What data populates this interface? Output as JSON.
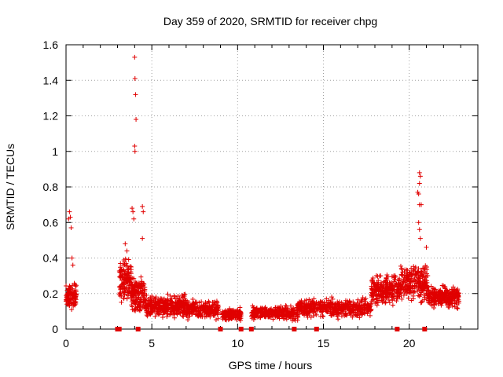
{
  "chart_data": {
    "type": "scatter",
    "title": "Day 359 of 2020, SRMTID for receiver chpg",
    "xlabel": "GPS time / hours",
    "ylabel": "SRMTID / TECUs",
    "xlim": [
      0,
      24
    ],
    "ylim": [
      0,
      1.6
    ],
    "x_ticks": [
      0,
      5,
      10,
      15,
      20
    ],
    "y_ticks": [
      0,
      0.2,
      0.4,
      0.6,
      0.8,
      1,
      1.2,
      1.4,
      1.6
    ],
    "x_tick_labels": [
      "0",
      "5",
      "10",
      "15",
      "20"
    ],
    "y_tick_labels": [
      "0",
      "0.2",
      "0.4",
      "0.6",
      "0.8",
      "1",
      "1.2",
      "1.4",
      "1.6"
    ],
    "grid": true,
    "marker": "+",
    "color": "#e00000",
    "series": [
      {
        "name": "SRMTID",
        "segments": [
          {
            "start": 0.0,
            "end": 0.6,
            "base": 0.18,
            "spread": 0.09,
            "n": 110
          },
          {
            "start": 3.1,
            "end": 3.8,
            "base": 0.28,
            "spread": 0.16,
            "n": 130
          },
          {
            "start": 3.8,
            "end": 4.6,
            "base": 0.2,
            "spread": 0.13,
            "n": 150
          },
          {
            "start": 4.6,
            "end": 7.0,
            "base": 0.13,
            "spread": 0.07,
            "n": 380
          },
          {
            "start": 7.0,
            "end": 8.9,
            "base": 0.11,
            "spread": 0.06,
            "n": 260
          },
          {
            "start": 9.1,
            "end": 10.2,
            "base": 0.08,
            "spread": 0.04,
            "n": 150
          },
          {
            "start": 10.8,
            "end": 13.5,
            "base": 0.09,
            "spread": 0.05,
            "n": 330
          },
          {
            "start": 13.5,
            "end": 17.8,
            "base": 0.12,
            "spread": 0.06,
            "n": 520
          },
          {
            "start": 17.8,
            "end": 19.5,
            "base": 0.22,
            "spread": 0.1,
            "n": 260
          },
          {
            "start": 19.5,
            "end": 21.1,
            "base": 0.26,
            "spread": 0.12,
            "n": 240
          },
          {
            "start": 21.1,
            "end": 22.9,
            "base": 0.18,
            "spread": 0.07,
            "n": 280
          }
        ],
        "spikes": [
          {
            "x": 0.15,
            "y": 0.62
          },
          {
            "x": 0.2,
            "y": 0.66
          },
          {
            "x": 0.25,
            "y": 0.63
          },
          {
            "x": 0.3,
            "y": 0.57
          },
          {
            "x": 0.35,
            "y": 0.4
          },
          {
            "x": 0.4,
            "y": 0.36
          },
          {
            "x": 3.45,
            "y": 0.48
          },
          {
            "x": 3.55,
            "y": 0.44
          },
          {
            "x": 3.85,
            "y": 0.68
          },
          {
            "x": 3.9,
            "y": 0.66
          },
          {
            "x": 3.95,
            "y": 0.62
          },
          {
            "x": 4.0,
            "y": 1.53
          },
          {
            "x": 4.02,
            "y": 1.41
          },
          {
            "x": 4.05,
            "y": 1.32
          },
          {
            "x": 4.08,
            "y": 1.18
          },
          {
            "x": 4.0,
            "y": 1.03
          },
          {
            "x": 4.02,
            "y": 1.0
          },
          {
            "x": 4.45,
            "y": 0.69
          },
          {
            "x": 4.5,
            "y": 0.66
          },
          {
            "x": 4.45,
            "y": 0.51
          },
          {
            "x": 20.6,
            "y": 0.88
          },
          {
            "x": 20.65,
            "y": 0.86
          },
          {
            "x": 20.6,
            "y": 0.82
          },
          {
            "x": 20.5,
            "y": 0.77
          },
          {
            "x": 20.55,
            "y": 0.76
          },
          {
            "x": 20.7,
            "y": 0.7
          },
          {
            "x": 20.6,
            "y": 0.7
          },
          {
            "x": 20.55,
            "y": 0.6
          },
          {
            "x": 20.6,
            "y": 0.56
          },
          {
            "x": 20.65,
            "y": 0.51
          },
          {
            "x": 21.0,
            "y": 0.46
          }
        ]
      }
    ],
    "gap_markers": [
      3.0,
      3.1,
      4.2,
      9.0,
      10.2,
      10.8,
      13.3,
      14.6,
      19.3,
      20.9
    ]
  }
}
